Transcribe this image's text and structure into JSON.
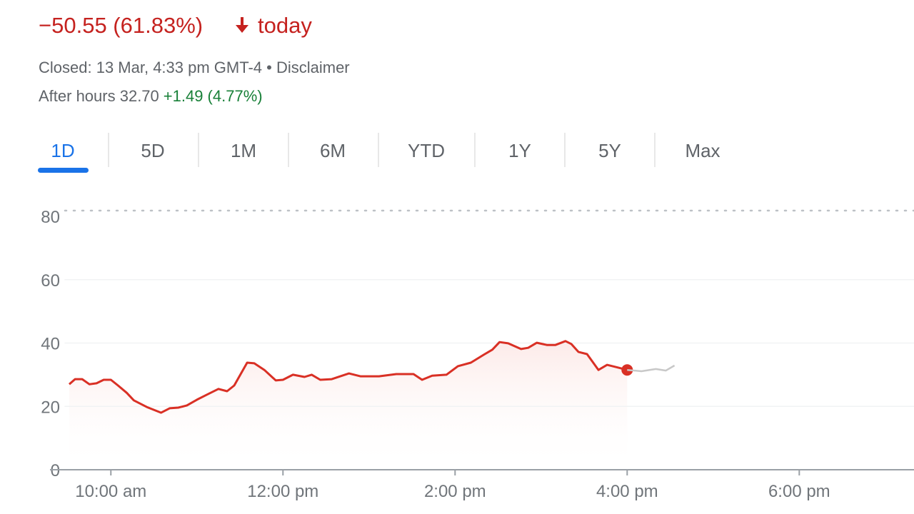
{
  "header": {
    "change": "−50.55 (61.83%)",
    "change_suffix": "today",
    "status": "Closed: 13 Mar, 4:33 pm GMT-4 • ",
    "disclaimer": "Disclaimer",
    "after_hours": "After hours 32.70",
    "after_hours_change": "+1.49 (4.77%)"
  },
  "tabs": [
    "1D",
    "5D",
    "1M",
    "6M",
    "YTD",
    "1Y",
    "5Y",
    "Max"
  ],
  "chart_data": {
    "type": "line",
    "x": [
      571,
      575,
      580,
      585,
      590,
      595,
      600,
      605,
      611,
      616,
      625,
      635,
      641,
      647,
      653,
      660,
      667,
      675,
      681,
      686,
      695,
      700,
      707,
      715,
      720,
      727,
      735,
      740,
      746,
      754,
      766,
      774,
      787,
      799,
      811,
      817,
      824,
      834,
      842,
      851,
      860,
      866,
      871,
      877,
      886,
      891,
      897,
      904,
      910,
      917,
      921,
      926,
      932,
      940,
      946,
      954,
      960,
      970,
      980,
      987,
      993
    ],
    "series": [
      {
        "color": "#d93025",
        "values": [
          27.0,
          28.6,
          28.6,
          27.0,
          27.3,
          28.4,
          28.4,
          26.6,
          24.3,
          21.9,
          19.8,
          18.0,
          19.4,
          19.6,
          20.3,
          22.1,
          23.7,
          25.5,
          24.8,
          26.6,
          33.8,
          33.6,
          31.5,
          28.2,
          28.4,
          30.0,
          29.3,
          30.0,
          28.4,
          28.6,
          30.4,
          29.5,
          29.5,
          30.2,
          30.2,
          28.4,
          29.7,
          30.0,
          32.7,
          33.8,
          36.3,
          37.9,
          40.3,
          39.9,
          38.1,
          38.5,
          40.1,
          39.4,
          39.4,
          40.6,
          39.7,
          37.2,
          36.5,
          31.5,
          33.1,
          32.2,
          31.5,
          null,
          null,
          null,
          null
        ]
      },
      {
        "color": "#c8c8c8",
        "values": [
          null,
          null,
          null,
          null,
          null,
          null,
          null,
          null,
          null,
          null,
          null,
          null,
          null,
          null,
          null,
          null,
          null,
          null,
          null,
          null,
          null,
          null,
          null,
          null,
          null,
          null,
          null,
          null,
          null,
          null,
          null,
          null,
          null,
          null,
          null,
          null,
          null,
          null,
          null,
          null,
          null,
          null,
          null,
          null,
          null,
          null,
          null,
          null,
          null,
          null,
          null,
          null,
          null,
          null,
          null,
          null,
          31.5,
          31.1,
          31.8,
          31.3,
          32.9
        ]
      }
    ],
    "xlim": [
      568,
      1160
    ],
    "xticks": [
      {
        "value": 600,
        "label": "10:00 am"
      },
      {
        "value": 720,
        "label": "12:00 pm"
      },
      {
        "value": 840,
        "label": "2:00 pm"
      },
      {
        "value": 960,
        "label": "4:00 pm"
      },
      {
        "value": 1080,
        "label": "6:00 pm"
      }
    ],
    "ylim": [
      0,
      80
    ],
    "yticks": [
      0,
      20,
      40,
      60,
      80
    ],
    "grid": true
  }
}
